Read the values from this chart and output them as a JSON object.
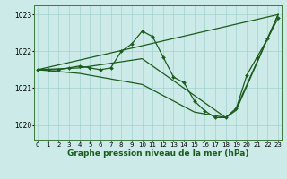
{
  "bg_color": "#cceae7",
  "grid_color": "#99cccc",
  "line_color": "#1a5c1a",
  "marker_color": "#1a5c1a",
  "xlabel": "Graphe pression niveau de la mer (hPa)",
  "xlabel_fontsize": 6.5,
  "xtick_labels": [
    "0",
    "1",
    "2",
    "3",
    "4",
    "5",
    "6",
    "7",
    "8",
    "9",
    "10",
    "11",
    "12",
    "13",
    "14",
    "15",
    "16",
    "17",
    "18",
    "19",
    "20",
    "21",
    "22",
    "23"
  ],
  "ytick_labels": [
    "1020",
    "1021",
    "1022",
    "1023"
  ],
  "yticks": [
    1020,
    1021,
    1022,
    1023
  ],
  "ylim": [
    1019.6,
    1023.25
  ],
  "xlim": [
    -0.3,
    23.3
  ],
  "series": [
    {
      "x": [
        0,
        1,
        2,
        3,
        4,
        5,
        6,
        7,
        8,
        9,
        10,
        11,
        12,
        13,
        14,
        15,
        16,
        17,
        18,
        19,
        20,
        21,
        22,
        23
      ],
      "y": [
        1021.5,
        1021.5,
        1021.5,
        1021.55,
        1021.6,
        1021.55,
        1021.5,
        1021.55,
        1022.0,
        1022.2,
        1022.55,
        1022.4,
        1021.85,
        1021.3,
        1021.15,
        1020.65,
        1020.38,
        1020.2,
        1020.2,
        1020.45,
        1021.35,
        1021.85,
        1022.35,
        1022.9
      ],
      "marker": "D",
      "markersize": 2.0,
      "linewidth": 0.9,
      "zorder": 5
    },
    {
      "x": [
        0,
        23
      ],
      "y": [
        1021.5,
        1023.0
      ],
      "marker": null,
      "linewidth": 0.9,
      "zorder": 3
    },
    {
      "x": [
        0,
        4,
        10,
        15,
        18,
        19,
        23
      ],
      "y": [
        1021.5,
        1021.55,
        1021.8,
        1020.8,
        1020.2,
        1020.45,
        1023.0
      ],
      "marker": null,
      "linewidth": 0.9,
      "zorder": 3
    },
    {
      "x": [
        0,
        4,
        10,
        15,
        18,
        19,
        23
      ],
      "y": [
        1021.5,
        1021.4,
        1021.1,
        1020.35,
        1020.2,
        1020.4,
        1023.0
      ],
      "marker": null,
      "linewidth": 0.9,
      "zorder": 3
    }
  ]
}
